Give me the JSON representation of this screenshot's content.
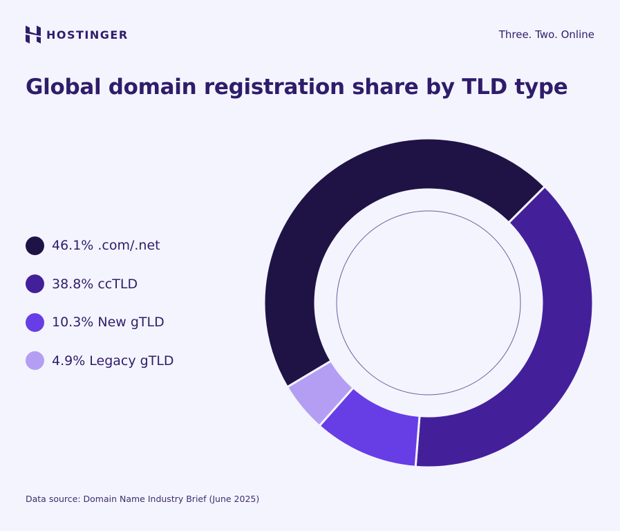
{
  "header": {
    "brand": "HOSTINGER",
    "tagline": "Three. Two. Online"
  },
  "title": "Global domain registration share by TLD type",
  "source": "Data source: Domain Name Industry Brief (June 2025)",
  "chart_data": {
    "type": "pie",
    "donut": true,
    "title": "Global domain registration share by TLD type",
    "legend_placement": "left",
    "slices": [
      {
        "label": ".com/.net",
        "value": 46.1,
        "value_label": "46.1%",
        "color": "#1f1346"
      },
      {
        "label": "ccTLD",
        "value": 38.8,
        "value_label": "38.8%",
        "color": "#43209a"
      },
      {
        "label": "New gTLD",
        "value": 10.3,
        "value_label": "10.3%",
        "color": "#673de6"
      },
      {
        "label": "Legacy gTLD",
        "value": 4.9,
        "value_label": "4.9%",
        "color": "#b39ef3"
      }
    ]
  }
}
